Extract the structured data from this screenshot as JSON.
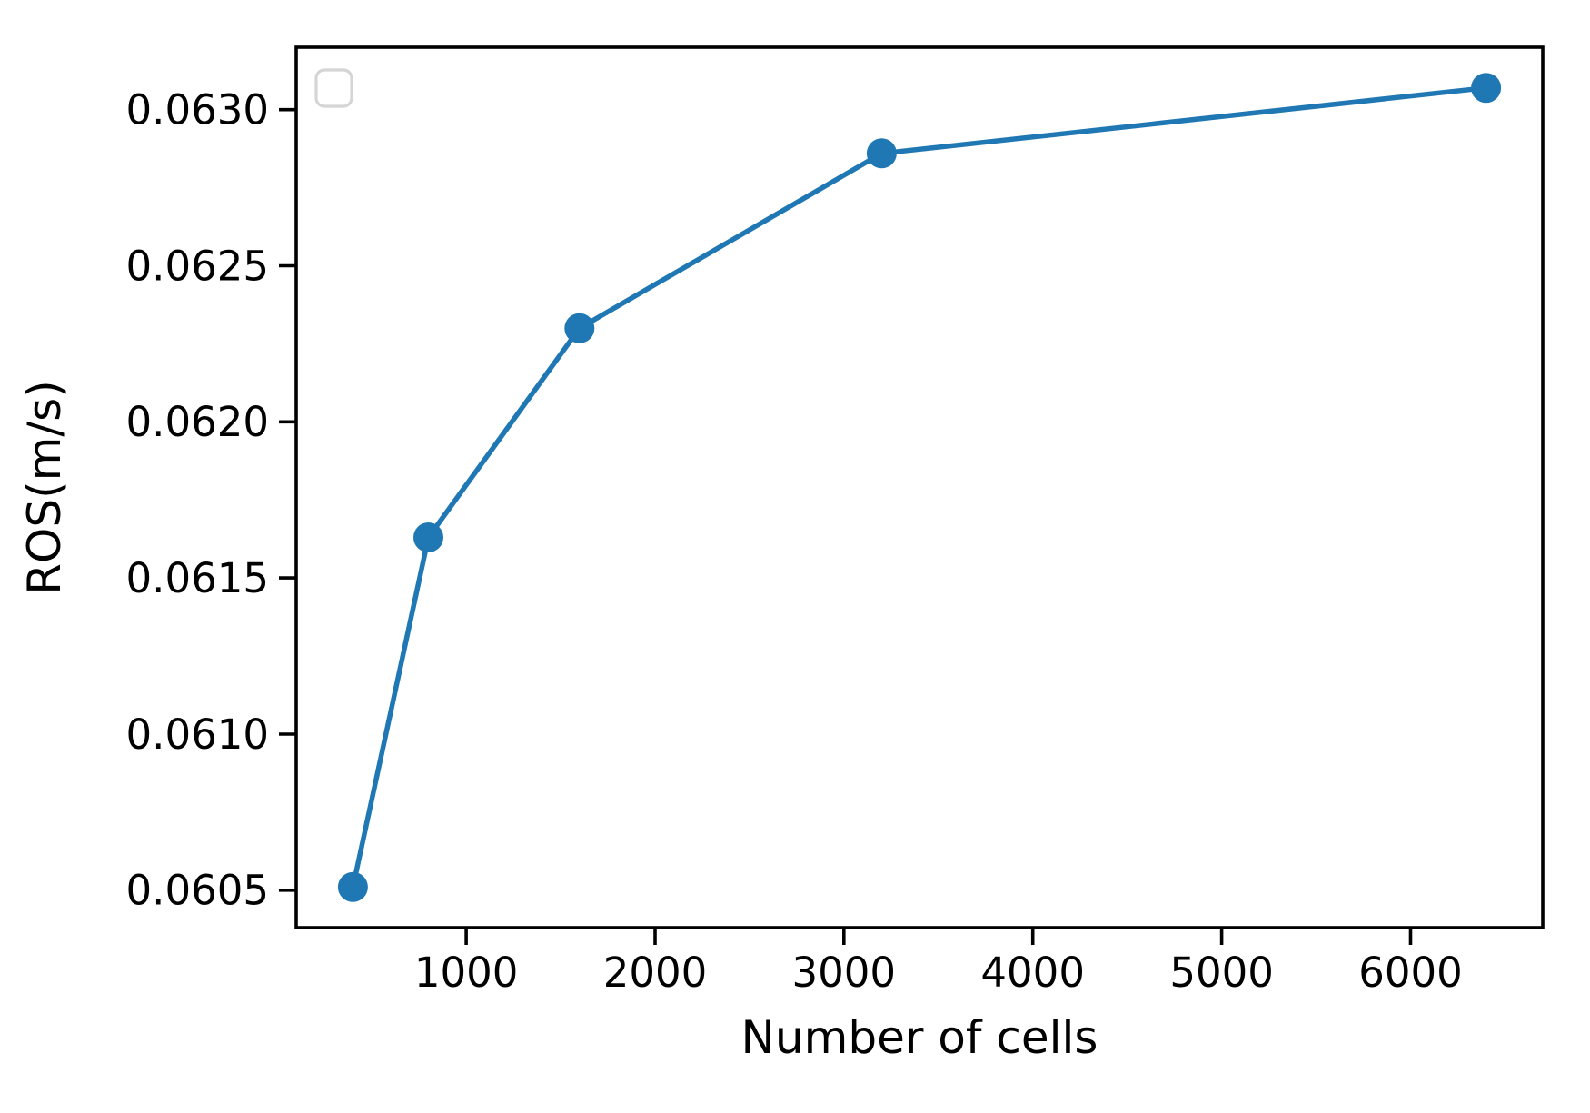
{
  "chart_data": {
    "type": "line",
    "title": "",
    "xlabel": "Number of cells",
    "ylabel": "ROS(m/s)",
    "x": [
      400,
      800,
      1600,
      3200,
      6400
    ],
    "y": [
      0.06051,
      0.06163,
      0.0623,
      0.06286,
      0.06307
    ],
    "xticks": [
      1000,
      2000,
      3000,
      4000,
      5000,
      6000
    ],
    "yticks": [
      0.0605,
      0.061,
      0.0615,
      0.062,
      0.0625,
      0.063
    ],
    "ytick_decimals": 4,
    "xlim": [
      100,
      6700
    ],
    "ylim": [
      0.06038,
      0.0632
    ],
    "grid": false,
    "legend": {
      "visible": true,
      "entries": [],
      "style": "empty-rounded-box-top-left"
    },
    "marker": "circle",
    "colors": {
      "line": "#1f77b4",
      "marker": "#1f77b4",
      "text": "#000000",
      "spine": "#000000",
      "legend_border": "#d5d5d5",
      "background": "#ffffff"
    }
  }
}
